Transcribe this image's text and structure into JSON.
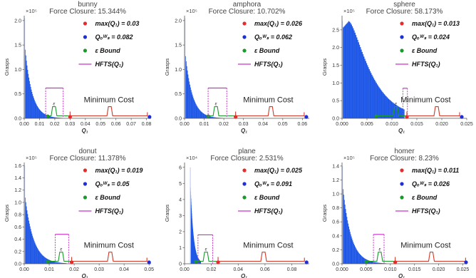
{
  "legend": {
    "max_label": "max(Q₁)",
    "qows_label": "Qₒᵂₛ",
    "bound_label": "ε Bound",
    "hfts_label": "HFTS(Q₁)"
  },
  "colors": {
    "histogram": "#1f57e6",
    "max_marker": "#e52b2b",
    "qows_marker": "#1f2fd4",
    "bound": "#1a9a2a",
    "hfts": "#cc33cc",
    "cost_curve": "#d03a2a",
    "axis": "#555555"
  },
  "chart_data": [
    {
      "type": "histogram",
      "title": "bunny",
      "subtitle": "Force Closure: 15.344%",
      "xlabel": "Q₁",
      "ylabel": "Grasps",
      "y_exponent": "×10⁵",
      "xlim": [
        0,
        0.083
      ],
      "ylim": [
        0,
        2.1
      ],
      "xticks": [
        0,
        0.01,
        0.02,
        0.03,
        0.04,
        0.05,
        0.06,
        0.07,
        0.08
      ],
      "xtick_labels": [
        "0.00",
        "0.01",
        "0.02",
        "0.03",
        "0.04",
        "0.05",
        "0.06",
        "0.07",
        "0.08"
      ],
      "yticks": [
        0,
        0.5,
        1.0,
        1.5,
        2.0
      ],
      "ytick_labels": [
        "0.0",
        "0.5",
        "1.0",
        "1.5",
        "2.0"
      ],
      "hist_peak": 1.6,
      "hist_decay": 0.0046,
      "hist_end": 0.028,
      "spike_height": 2.05,
      "max_q1": 0.03,
      "q_ows": 0.082,
      "max_q1_text": "= 0.03",
      "q_ows_text": "= 0.082",
      "hfts_range": [
        0.014,
        0.0255
      ],
      "hfts_y": 0.62,
      "bound_x": 0.0195,
      "eps_symbol": "ε",
      "cost_bumps": [
        0.056
      ],
      "min_cost_label": "Minimum Cost"
    },
    {
      "type": "histogram",
      "title": "amphora",
      "subtitle": "Force Closure: 10.702%",
      "xlabel": "Q₁",
      "ylabel": "Grasps",
      "y_exponent": "×10⁵",
      "xlim": [
        0,
        0.0635
      ],
      "ylim": [
        0,
        2.1
      ],
      "xticks": [
        0,
        0.01,
        0.02,
        0.03,
        0.04,
        0.05,
        0.06
      ],
      "xtick_labels": [
        "0.00",
        "0.01",
        "0.02",
        "0.03",
        "0.04",
        "0.05",
        "0.06"
      ],
      "yticks": [
        0,
        0.5,
        1.0,
        1.5,
        2.0
      ],
      "ytick_labels": [
        "0.0",
        "0.5",
        "1.0",
        "1.5",
        "2.0"
      ],
      "hist_peak": 1.45,
      "hist_decay": 0.0036,
      "hist_end": 0.022,
      "spike_height": 2.05,
      "max_q1": 0.026,
      "q_ows": 0.062,
      "max_q1_text": "= 0.026",
      "q_ows_text": "= 0.062",
      "hfts_range": [
        0.012,
        0.0215
      ],
      "hfts_y": 0.62,
      "bound_x": 0.016,
      "eps_symbol": "ε",
      "cost_bumps": [
        0.044
      ],
      "min_cost_label": "Minimum Cost"
    },
    {
      "type": "histogram",
      "title": "sphere",
      "subtitle": "Force Closure: 58.173%",
      "xlabel": "Q₁",
      "ylabel": "Grasps",
      "y_exponent": "×10⁵",
      "xlim": [
        0,
        0.025
      ],
      "ylim": [
        0,
        2.9
      ],
      "xticks": [
        0,
        0.005,
        0.01,
        0.015,
        0.02,
        0.025
      ],
      "xtick_labels": [
        "0.000",
        "0.005",
        "0.010",
        "0.015",
        "0.020",
        "0.025"
      ],
      "yticks": [
        0,
        0.5,
        1.0,
        1.5,
        2.0,
        2.5
      ],
      "ytick_labels": [
        "0.0",
        "0.5",
        "1.0",
        "1.5",
        "2.0",
        "2.5"
      ],
      "hist_peak": 2.75,
      "hist_decay": 0.0035,
      "hist_end": 0.0125,
      "hist_shape": "gamma",
      "spike_height": 2.75,
      "max_q1": 0.013,
      "q_ows": 0.024,
      "max_q1_text": "= 0.013",
      "q_ows_text": "= 0.024",
      "hfts_range": [
        0.0122,
        0.0131
      ],
      "hfts_y": 0.85,
      "bound_x": 0.0108,
      "eps_symbol": "ε",
      "cost_bumps": [
        0.019
      ],
      "min_cost_label": "Minimum Cost"
    },
    {
      "type": "histogram",
      "title": "donut",
      "subtitle": "Force Closure: 11.378%",
      "xlabel": "Q₁",
      "ylabel": "Grasps",
      "y_exponent": "×10⁵",
      "xlim": [
        0,
        0.0508
      ],
      "ylim": [
        0,
        1.65
      ],
      "xticks": [
        0,
        0.01,
        0.02,
        0.03,
        0.04,
        0.05
      ],
      "xtick_labels": [
        "0.00",
        "0.01",
        "0.02",
        "0.03",
        "0.04",
        "0.05"
      ],
      "yticks": [
        0,
        0.2,
        0.4,
        0.6,
        0.8,
        1.0,
        1.2,
        1.4,
        1.6
      ],
      "ytick_labels": [
        "0.0",
        "0.2",
        "0.4",
        "0.6",
        "0.8",
        "1.0",
        "1.2",
        "1.4",
        "1.6"
      ],
      "hist_peak": 1.2,
      "hist_decay": 0.0034,
      "hist_end": 0.017,
      "spike_height": 1.6,
      "max_q1": 0.019,
      "q_ows": 0.05,
      "max_q1_text": "= 0.019",
      "q_ows_text": "= 0.05",
      "hfts_range": [
        0.0124,
        0.0178
      ],
      "hfts_y": 0.48,
      "bound_x": 0.0148,
      "eps_symbol": "ε",
      "cost_bumps": [
        0.0345
      ],
      "min_cost_label": "Minimum Cost"
    },
    {
      "type": "histogram",
      "title": "plane",
      "subtitle": "Force Closure: 2.531%",
      "xlabel": "Q₁",
      "ylabel": "Grasps",
      "y_exponent": "×10⁴",
      "xlim": [
        0,
        0.093
      ],
      "ylim": [
        0,
        6.3
      ],
      "xticks": [
        0,
        0.02,
        0.04,
        0.06,
        0.08
      ],
      "xtick_labels": [
        "0.00",
        "0.02",
        "0.04",
        "0.06",
        "0.08"
      ],
      "yticks": [
        0,
        1,
        2,
        3,
        4,
        5,
        6
      ],
      "ytick_labels": [
        "0",
        "1",
        "2",
        "3",
        "4",
        "5",
        "6"
      ],
      "hist_peak": 5.4,
      "hist_decay": 0.0022,
      "hist_end": 0.012,
      "hist_start": 0.004,
      "spike_height": 6.0,
      "max_q1": 0.025,
      "q_ows": 0.091,
      "max_q1_text": "= 0.025",
      "q_ows_text": "= 0.091",
      "hfts_range": [
        0.01,
        0.021
      ],
      "hfts_y": 1.8,
      "bound_x": 0.016,
      "eps_symbol": "ε",
      "cost_bumps": [
        0.059
      ],
      "min_cost_label": "Minimum Cost"
    },
    {
      "type": "histogram",
      "title": "homer",
      "subtitle": "Force Closure: 8.23%",
      "xlabel": "Q₁",
      "ylabel": "Grasps",
      "y_exponent": "×10⁵",
      "xlim": [
        0,
        0.0258
      ],
      "ylim": [
        0,
        1.45
      ],
      "xticks": [
        0,
        0.005,
        0.01,
        0.015,
        0.02,
        0.025
      ],
      "xtick_labels": [
        "0.000",
        "0.005",
        "0.010",
        "0.015",
        "0.020",
        "0.025"
      ],
      "yticks": [
        0,
        0.2,
        0.4,
        0.6,
        0.8,
        1.0,
        1.2,
        1.4
      ],
      "ytick_labels": [
        "0.0",
        "0.2",
        "0.4",
        "0.6",
        "0.8",
        "1.0",
        "1.2",
        "1.4"
      ],
      "hist_peak": 1.2,
      "hist_decay": 0.0017,
      "hist_end": 0.0092,
      "spike_height": 1.4,
      "max_q1": 0.011,
      "q_ows": 0.026,
      "max_q1_text": "= 0.011",
      "q_ows_text": "= 0.026",
      "hfts_range": [
        0.0065,
        0.0087
      ],
      "hfts_y": 0.42,
      "bound_x": 0.0078,
      "eps_symbol": "ε",
      "cost_bumps": [
        0.0185
      ],
      "min_cost_label": "Minimum Cost"
    }
  ]
}
